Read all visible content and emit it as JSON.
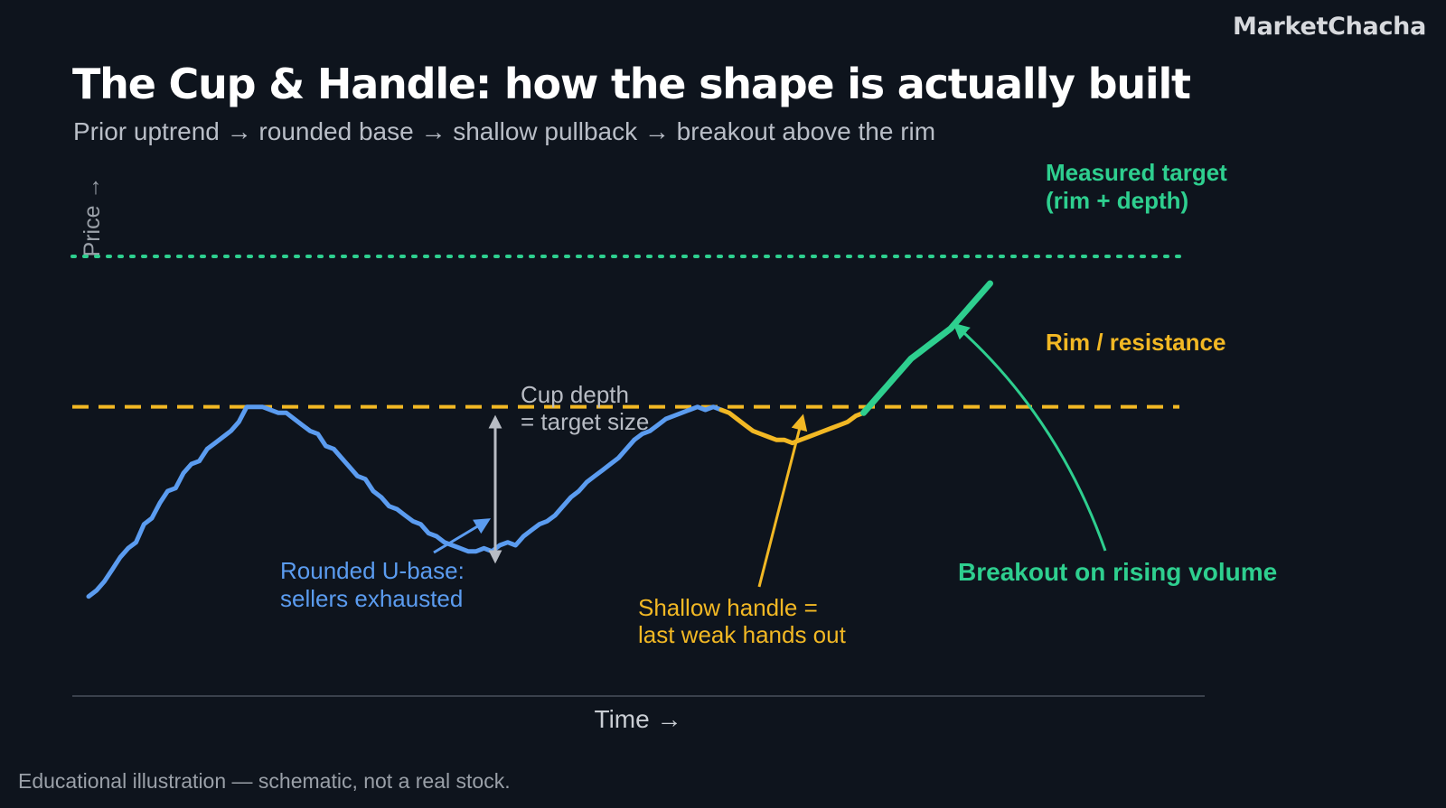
{
  "brand": "MarketChacha",
  "title": "The Cup & Handle: how the shape is actually built",
  "subtitle": "Prior uptrend → rounded base → shallow pullback → breakout above the rim",
  "footer": "Educational illustration — schematic, not a real stock.",
  "colors": {
    "background": "#0e141d",
    "cup": "#5b9cf0",
    "handle": "#f2b824",
    "breakout": "#2ecf8f",
    "depth_arrow": "#b8bcc4",
    "axis": "#3a414c"
  },
  "chart_data": {
    "type": "line",
    "xlabel": "Time →",
    "ylabel": "Price →",
    "rim": 100,
    "target": 150,
    "cup_low": 50,
    "xlim": [
      0,
      120
    ],
    "ylim": [
      0,
      180
    ],
    "series": [
      {
        "role": "cup",
        "x": [
          0,
          1,
          2,
          3,
          4,
          5,
          6,
          7,
          8,
          9,
          10,
          11,
          12,
          13,
          14,
          15,
          16,
          17,
          18,
          19,
          20,
          21,
          22,
          23,
          24,
          25,
          26,
          27,
          28,
          29,
          30,
          31,
          32,
          33,
          34,
          35,
          36,
          37,
          38,
          39,
          40,
          41,
          42,
          43,
          44,
          45,
          46,
          47,
          48,
          49,
          50,
          51,
          52,
          53,
          54,
          55,
          56,
          57,
          58,
          59,
          60,
          61,
          62,
          63,
          64,
          65,
          66,
          67,
          68,
          69
        ],
        "values": [
          37,
          39,
          42,
          46,
          50,
          53,
          55,
          61,
          63,
          68,
          72,
          73,
          78,
          81,
          82,
          86,
          88,
          90,
          92,
          95,
          100,
          100,
          100,
          99,
          98,
          98,
          96,
          94,
          92,
          91,
          87,
          86,
          83,
          80,
          77,
          76,
          72,
          70,
          67,
          66,
          64,
          62,
          61,
          58,
          57,
          55,
          54,
          53,
          52,
          52,
          53,
          52,
          54,
          55,
          54,
          57,
          59,
          61,
          62,
          64,
          67,
          70,
          72,
          75,
          77,
          79,
          81,
          83,
          86,
          89
        ]
      },
      {
        "role": "cup",
        "x": [
          69,
          70,
          71,
          72,
          73,
          74,
          75,
          76,
          77,
          78,
          79,
          80
        ],
        "values": [
          89,
          91,
          92,
          94,
          96,
          97,
          98,
          99,
          100,
          99,
          100,
          99
        ]
      },
      {
        "role": "handle",
        "x": [
          80,
          81,
          82,
          83,
          84,
          85,
          86,
          87,
          88,
          89,
          90,
          91,
          92,
          93,
          94,
          95,
          96,
          97,
          98
        ],
        "values": [
          99,
          98,
          96,
          94,
          92,
          91,
          90,
          89,
          89,
          88,
          89,
          90,
          91,
          92,
          93,
          94,
          95,
          97,
          98
        ]
      },
      {
        "role": "breakout",
        "x": [
          98,
          99,
          100,
          101,
          102,
          103,
          104,
          105,
          106,
          107,
          108,
          109,
          110,
          111,
          112,
          113,
          114
        ],
        "values": [
          98,
          101,
          104,
          107,
          110,
          113,
          116,
          118,
          120,
          122,
          124,
          126,
          129,
          132,
          135,
          138,
          141
        ]
      }
    ],
    "annotations": {
      "target": [
        "Measured target",
        "(rim + depth)"
      ],
      "rim": "Rim / resistance",
      "depth": [
        "Cup depth",
        "= target size"
      ],
      "base": [
        "Rounded U-base:",
        "sellers exhausted"
      ],
      "handle": [
        "Shallow handle =",
        "last weak hands out"
      ],
      "breakout": "Breakout on rising volume"
    }
  }
}
